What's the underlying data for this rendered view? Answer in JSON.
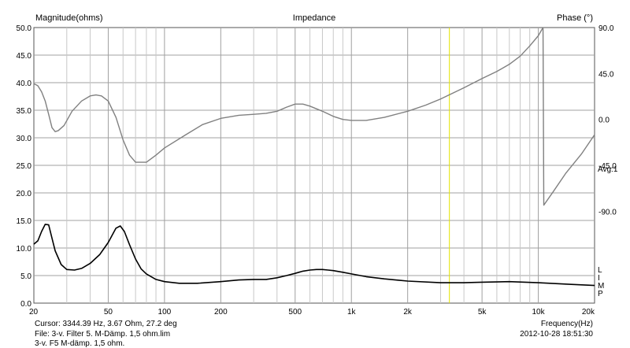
{
  "chart_data": {
    "type": "line",
    "title": "Impedance",
    "left_axis_label": "Magnitude(ohms)",
    "right_axis_label": "Phase (°)",
    "xlabel": "Frequency(Hz)",
    "x_scale": "log",
    "xlim": [
      20,
      20000
    ],
    "ylim_left": [
      0,
      50
    ],
    "ylim_right": [
      -180,
      90
    ],
    "grid": true,
    "x_major_ticks": [
      20,
      50,
      100,
      200,
      500,
      1000,
      2000,
      5000,
      10000,
      20000
    ],
    "x_tick_labels": [
      "20",
      "50",
      "100",
      "200",
      "500",
      "1k",
      "2k",
      "5k",
      "10k",
      "20k"
    ],
    "x_minor_ticks": [
      30,
      40,
      60,
      70,
      80,
      90,
      300,
      400,
      600,
      700,
      800,
      900,
      3000,
      4000,
      6000,
      7000,
      8000,
      9000
    ],
    "y_left_ticks": [
      0,
      5,
      10,
      15,
      20,
      25,
      30,
      35,
      40,
      45,
      50
    ],
    "y_left_tick_labels": [
      "0.0",
      "5.0",
      "10.0",
      "15.0",
      "20.0",
      "25.0",
      "30.0",
      "35.0",
      "40.0",
      "45.0",
      "50.0"
    ],
    "y_right_ticks": [
      90,
      45,
      0,
      -45,
      -90
    ],
    "y_right_tick_labels": [
      "90.0",
      "45.0",
      "0.0",
      "-45.0",
      "-90.0"
    ],
    "right_annotation": "Avg:1",
    "cursor_freq_hz": 3344.39,
    "cursor_color": "#e4e400",
    "series": [
      {
        "id": "magnitude",
        "axis": "left",
        "color": "#000000",
        "points": [
          [
            20,
            10.7
          ],
          [
            21,
            11.3
          ],
          [
            22,
            13.0
          ],
          [
            23,
            14.3
          ],
          [
            24,
            14.2
          ],
          [
            25,
            11.8
          ],
          [
            26,
            9.5
          ],
          [
            28,
            7.0
          ],
          [
            30,
            6.1
          ],
          [
            33,
            6.0
          ],
          [
            36,
            6.3
          ],
          [
            40,
            7.2
          ],
          [
            45,
            8.8
          ],
          [
            50,
            11.0
          ],
          [
            55,
            13.6
          ],
          [
            58,
            14.0
          ],
          [
            61,
            13.0
          ],
          [
            65,
            10.6
          ],
          [
            70,
            8.0
          ],
          [
            75,
            6.2
          ],
          [
            80,
            5.3
          ],
          [
            90,
            4.3
          ],
          [
            100,
            3.9
          ],
          [
            120,
            3.6
          ],
          [
            150,
            3.6
          ],
          [
            200,
            3.9
          ],
          [
            250,
            4.2
          ],
          [
            300,
            4.3
          ],
          [
            350,
            4.3
          ],
          [
            400,
            4.6
          ],
          [
            450,
            5.0
          ],
          [
            500,
            5.4
          ],
          [
            550,
            5.8
          ],
          [
            600,
            6.0
          ],
          [
            650,
            6.1
          ],
          [
            700,
            6.1
          ],
          [
            750,
            6.0
          ],
          [
            800,
            5.9
          ],
          [
            900,
            5.6
          ],
          [
            1000,
            5.3
          ],
          [
            1200,
            4.8
          ],
          [
            1500,
            4.4
          ],
          [
            2000,
            4.0
          ],
          [
            3000,
            3.7
          ],
          [
            4000,
            3.7
          ],
          [
            5000,
            3.8
          ],
          [
            7000,
            3.9
          ],
          [
            10000,
            3.7
          ],
          [
            15000,
            3.4
          ],
          [
            20000,
            3.2
          ]
        ]
      },
      {
        "id": "phase",
        "axis": "right",
        "color": "#808080",
        "points": [
          [
            20,
            35
          ],
          [
            21,
            33
          ],
          [
            22,
            27
          ],
          [
            23,
            18
          ],
          [
            24,
            5
          ],
          [
            25,
            -8
          ],
          [
            26,
            -12
          ],
          [
            27,
            -11
          ],
          [
            29,
            -6
          ],
          [
            32,
            8
          ],
          [
            36,
            18
          ],
          [
            40,
            23
          ],
          [
            43,
            24
          ],
          [
            46,
            23
          ],
          [
            50,
            18
          ],
          [
            55,
            2
          ],
          [
            60,
            -20
          ],
          [
            65,
            -35
          ],
          [
            70,
            -42
          ],
          [
            80,
            -42
          ],
          [
            90,
            -35
          ],
          [
            100,
            -28
          ],
          [
            130,
            -15
          ],
          [
            160,
            -5
          ],
          [
            200,
            1
          ],
          [
            250,
            4
          ],
          [
            300,
            5
          ],
          [
            350,
            6
          ],
          [
            400,
            8
          ],
          [
            450,
            12
          ],
          [
            500,
            15
          ],
          [
            550,
            15
          ],
          [
            600,
            13
          ],
          [
            700,
            8
          ],
          [
            800,
            3
          ],
          [
            900,
            0
          ],
          [
            1000,
            -1
          ],
          [
            1200,
            -1
          ],
          [
            1500,
            2
          ],
          [
            2000,
            8
          ],
          [
            2500,
            14
          ],
          [
            3000,
            20
          ],
          [
            4000,
            31
          ],
          [
            5000,
            40
          ],
          [
            6000,
            47
          ],
          [
            7000,
            54
          ],
          [
            8000,
            62
          ],
          [
            9000,
            72
          ],
          [
            10000,
            82
          ],
          [
            10600,
            90
          ],
          [
            10700,
            -84
          ],
          [
            12000,
            -71
          ],
          [
            14000,
            -53
          ],
          [
            17000,
            -34
          ],
          [
            20000,
            -15
          ]
        ]
      }
    ],
    "side_labels": [
      "L",
      "I",
      "M",
      "P"
    ],
    "footer": {
      "cursor_text": "Cursor: 3344.39 Hz, 3.67 Ohm, 27.2 deg",
      "file_line1": "File: 3-v. Filter 5. M-Dämp. 1,5 ohm.lim",
      "file_line2": "3-v. F5 M-dämp. 1,5 ohm.",
      "timestamp": "2012-10-28 18:51:30"
    }
  }
}
